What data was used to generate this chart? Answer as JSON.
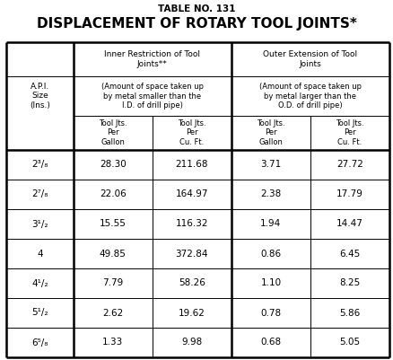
{
  "table_no": "TABLE NO. 131",
  "title": "DISPLACEMENT OF ROTARY TOOL JOINTS*",
  "col_groups": [
    {
      "label": "Inner Restriction of Tool\nJoints**"
    },
    {
      "label": "Outer Extension of Tool\nJoints"
    }
  ],
  "sub_desc": [
    "(Amount of space taken up\nby metal smaller than the\nI.D. of drill pipe)",
    "(Amount of space taken up\nby metal larger than the\nO.D. of drill pipe)"
  ],
  "col_headers": [
    "Tool Jts.\nPer\nGallon",
    "Tool Jts.\nPer\nCu. Ft.",
    "Tool Jts.\nPer\nGallon",
    "Tool Jts.\nPer\nCu. Ft."
  ],
  "row_label_header": "A.P.I.\nSize\n(Ins.)",
  "rows": [
    {
      "size": "2³/₈",
      "vals": [
        "28.30",
        "211.68",
        "3.71",
        "27.72"
      ]
    },
    {
      "size": "2⁷/₈",
      "vals": [
        "22.06",
        "164.97",
        "2.38",
        "17.79"
      ]
    },
    {
      "size": "3¹/₂",
      "vals": [
        "15.55",
        "116.32",
        "1.94",
        "14.47"
      ]
    },
    {
      "size": "4",
      "vals": [
        "49.85",
        "372.84",
        "0.86",
        "6.45"
      ]
    },
    {
      "size": "4¹/₂",
      "vals": [
        "7.79",
        "58.26",
        "1.10",
        "8.25"
      ]
    },
    {
      "size": "5¹/₂",
      "vals": [
        "2.62",
        "19.62",
        "0.78",
        "5.86"
      ]
    },
    {
      "size": "6⁵/₈",
      "vals": [
        "1.33",
        "9.98",
        "0.68",
        "5.05"
      ]
    }
  ],
  "bg_color": "#ffffff",
  "text_color": "#000000",
  "border_color": "#000000",
  "thick_lw": 1.8,
  "thin_lw": 0.7,
  "fig_w": 4.39,
  "fig_h": 4.01,
  "dpi": 100
}
